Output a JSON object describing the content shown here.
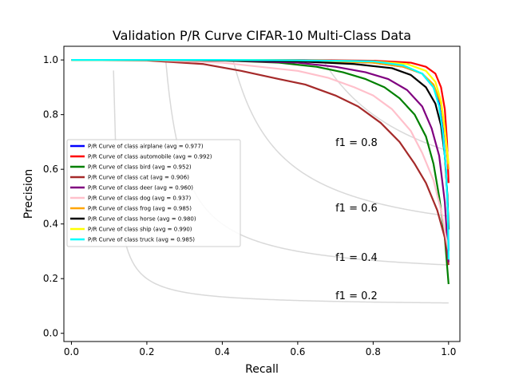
{
  "chart_data": {
    "type": "line",
    "title": "Validation P/R Curve CIFAR-10 Multi-Class Data",
    "xlabel": "Recall",
    "ylabel": "Precision",
    "xlim": [
      -0.02,
      1.03
    ],
    "ylim": [
      -0.03,
      1.05
    ],
    "xticks": [
      0.0,
      0.2,
      0.4,
      0.6,
      0.8,
      1.0
    ],
    "yticks": [
      0.0,
      0.2,
      0.4,
      0.6,
      0.8,
      1.0
    ],
    "tick_labels": [
      "0.0",
      "0.2",
      "0.4",
      "0.6",
      "0.8",
      "1.0"
    ],
    "grid": false,
    "legend_position": "center-left",
    "iso_f1": [
      {
        "f1": 0.2,
        "label": "f1 = 0.2",
        "label_at": [
          0.7,
          0.14
        ]
      },
      {
        "f1": 0.4,
        "label": "f1 = 0.4",
        "label_at": [
          0.7,
          0.28
        ]
      },
      {
        "f1": 0.6,
        "label": "f1 = 0.6",
        "label_at": [
          0.7,
          0.46
        ]
      },
      {
        "f1": 0.8,
        "label": "f1 = 0.8",
        "label_at": [
          0.7,
          0.7
        ]
      }
    ],
    "series": [
      {
        "name": "P/R Curve of class airplane (avg = 0.977)",
        "color": "#0000ff",
        "x": [
          0.0,
          0.2,
          0.4,
          0.6,
          0.8,
          0.88,
          0.93,
          0.96,
          0.975,
          0.985,
          0.993,
          0.998,
          1.0
        ],
        "y": [
          1.0,
          1.0,
          1.0,
          0.998,
          0.99,
          0.975,
          0.95,
          0.9,
          0.84,
          0.74,
          0.6,
          0.45,
          0.3
        ]
      },
      {
        "name": "P/R Curve of class automobile (avg = 0.992)",
        "color": "#ff0000",
        "x": [
          0.0,
          0.2,
          0.4,
          0.6,
          0.8,
          0.9,
          0.94,
          0.965,
          0.98,
          0.99,
          0.996,
          1.0
        ],
        "y": [
          1.0,
          1.0,
          1.0,
          1.0,
          0.997,
          0.99,
          0.975,
          0.95,
          0.9,
          0.82,
          0.7,
          0.55
        ]
      },
      {
        "name": "P/R Curve of class bird (avg = 0.952)",
        "color": "#008000",
        "x": [
          0.0,
          0.2,
          0.4,
          0.55,
          0.65,
          0.72,
          0.78,
          0.83,
          0.87,
          0.91,
          0.94,
          0.96,
          0.975,
          0.99,
          1.0
        ],
        "y": [
          1.0,
          1.0,
          0.998,
          0.99,
          0.975,
          0.955,
          0.93,
          0.9,
          0.86,
          0.8,
          0.72,
          0.62,
          0.5,
          0.35,
          0.18
        ]
      },
      {
        "name": "P/R Curve of class cat (avg = 0.906)",
        "color": "#a52a2a",
        "x": [
          0.0,
          0.2,
          0.35,
          0.45,
          0.55,
          0.62,
          0.7,
          0.76,
          0.82,
          0.87,
          0.91,
          0.94,
          0.97,
          0.99,
          1.0
        ],
        "y": [
          1.0,
          0.998,
          0.985,
          0.96,
          0.93,
          0.91,
          0.87,
          0.83,
          0.77,
          0.7,
          0.62,
          0.55,
          0.45,
          0.35,
          0.25
        ]
      },
      {
        "name": "P/R Curve of class deer (avg = 0.960)",
        "color": "#800080",
        "x": [
          0.0,
          0.2,
          0.4,
          0.6,
          0.7,
          0.78,
          0.84,
          0.89,
          0.93,
          0.955,
          0.975,
          0.99,
          1.0
        ],
        "y": [
          1.0,
          1.0,
          0.998,
          0.99,
          0.975,
          0.955,
          0.93,
          0.89,
          0.83,
          0.75,
          0.65,
          0.48,
          0.26
        ]
      },
      {
        "name": "P/R Curve of class dog (avg = 0.937)",
        "color": "#ffc0cb",
        "x": [
          0.0,
          0.2,
          0.4,
          0.5,
          0.6,
          0.68,
          0.75,
          0.8,
          0.85,
          0.9,
          0.93,
          0.96,
          0.98,
          1.0
        ],
        "y": [
          1.0,
          1.0,
          0.99,
          0.975,
          0.96,
          0.935,
          0.9,
          0.87,
          0.82,
          0.74,
          0.66,
          0.56,
          0.45,
          0.3
        ]
      },
      {
        "name": "P/R Curve of class frog (avg = 0.985)",
        "color": "#ffa500",
        "x": [
          0.0,
          0.2,
          0.4,
          0.6,
          0.8,
          0.88,
          0.93,
          0.96,
          0.98,
          0.99,
          1.0
        ],
        "y": [
          1.0,
          1.0,
          1.0,
          0.998,
          0.99,
          0.975,
          0.95,
          0.91,
          0.84,
          0.74,
          0.6
        ]
      },
      {
        "name": "P/R Curve of class horse (avg = 0.980)",
        "color": "#000000",
        "x": [
          0.0,
          0.2,
          0.4,
          0.6,
          0.75,
          0.85,
          0.9,
          0.94,
          0.965,
          0.98,
          0.99,
          0.997,
          1.0
        ],
        "y": [
          1.0,
          1.0,
          0.998,
          0.995,
          0.985,
          0.97,
          0.945,
          0.9,
          0.84,
          0.76,
          0.65,
          0.5,
          0.38
        ]
      },
      {
        "name": "P/R Curve of class ship (avg = 0.990)",
        "color": "#ffff00",
        "x": [
          0.0,
          0.2,
          0.4,
          0.6,
          0.8,
          0.89,
          0.94,
          0.965,
          0.98,
          0.99,
          1.0
        ],
        "y": [
          1.0,
          1.0,
          1.0,
          0.999,
          0.995,
          0.985,
          0.96,
          0.92,
          0.85,
          0.75,
          0.62
        ]
      },
      {
        "name": "P/R Curve of class truck (avg = 0.985)",
        "color": "#00ffff",
        "x": [
          0.0,
          0.2,
          0.4,
          0.6,
          0.8,
          0.88,
          0.93,
          0.96,
          0.975,
          0.985,
          0.993,
          0.998,
          1.0
        ],
        "y": [
          1.0,
          1.0,
          1.0,
          0.999,
          0.995,
          0.98,
          0.95,
          0.9,
          0.83,
          0.73,
          0.6,
          0.45,
          0.27
        ]
      }
    ]
  }
}
